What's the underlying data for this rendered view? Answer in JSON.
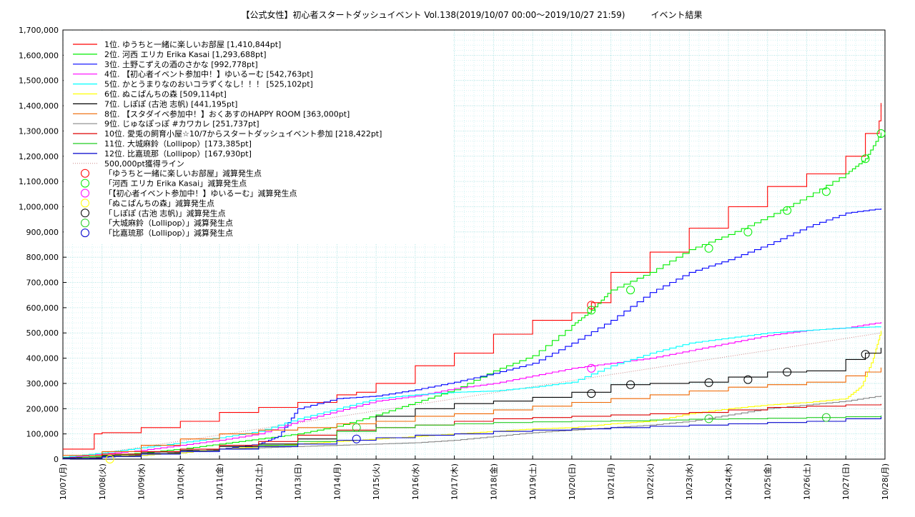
{
  "chart_data": {
    "type": "line",
    "title": "【公式女性】初心者スタートダッシュイベント Vol.138(2019/10/07 00:00〜2019/10/27 21:59)　　　イベント結果",
    "xlabel": "",
    "ylabel": "",
    "ylim": [
      0,
      1700000
    ],
    "grid": true,
    "legend_position": "top-left",
    "x_ticks": [
      "10/07(月)",
      "10/08(火)",
      "10/09(水)",
      "10/10(木)",
      "10/11(金)",
      "10/12(土)",
      "10/13(日)",
      "10/14(月)",
      "10/15(火)",
      "10/16(水)",
      "10/17(木)",
      "10/18(金)",
      "10/19(土)",
      "10/20(日)",
      "10/21(月)",
      "10/22(火)",
      "10/23(水)",
      "10/24(木)",
      "10/25(金)",
      "10/26(土)",
      "10/27(日)",
      "10/28(月)"
    ],
    "y_ticks": [
      "0",
      "100,000",
      "200,000",
      "300,000",
      "400,000",
      "500,000",
      "600,000",
      "700,000",
      "800,000",
      "900,000",
      "1,000,000",
      "1,100,000",
      "1,200,000",
      "1,300,000",
      "1,400,000",
      "1,500,000",
      "1,600,000",
      "1,700,000"
    ],
    "series": [
      {
        "name": "1位. ゆうちと一緒に楽しいお部屋 [1,410,844pt]",
        "color": "#ff0000",
        "style": "step",
        "x": [
          0,
          0.5,
          0.8,
          1,
          2,
          3,
          4,
          5,
          6,
          7,
          7.5,
          8,
          9,
          10,
          11,
          12,
          13,
          13.5,
          14,
          15,
          16,
          17,
          18,
          19,
          20,
          20.5,
          20.85,
          20.9
        ],
        "y": [
          40000,
          40000,
          100000,
          105000,
          125000,
          150000,
          185000,
          205000,
          225000,
          255000,
          265000,
          300000,
          370000,
          420000,
          495000,
          550000,
          580000,
          620000,
          740000,
          820000,
          915000,
          1000000,
          1080000,
          1130000,
          1200000,
          1290000,
          1340000,
          1410844
        ]
      },
      {
        "name": "2位. 河西 エリカ Erika Kasai [1,293,688pt]",
        "color": "#00ee00",
        "style": "line",
        "x": [
          0,
          1,
          2,
          3,
          4,
          5,
          6,
          7,
          8,
          9,
          10,
          11,
          12,
          13,
          13.5,
          14,
          15,
          16,
          17,
          18,
          19,
          20,
          20.5,
          20.9
        ],
        "y": [
          5000,
          12000,
          25000,
          40000,
          60000,
          80000,
          100000,
          130000,
          175000,
          225000,
          275000,
          350000,
          410000,
          530000,
          590000,
          670000,
          740000,
          830000,
          890000,
          960000,
          1040000,
          1130000,
          1190000,
          1293688
        ]
      },
      {
        "name": "3位. 土野こずえの酒のさかな [992,778pt]",
        "color": "#0000ff",
        "style": "line",
        "x": [
          0,
          1,
          2,
          3,
          4,
          5,
          5.5,
          6,
          7,
          8,
          9,
          10,
          11,
          12,
          13,
          14,
          15,
          16,
          17,
          18,
          19,
          20,
          20.9
        ],
        "y": [
          3000,
          8000,
          15000,
          25000,
          40000,
          60000,
          90000,
          200000,
          240000,
          250000,
          275000,
          305000,
          340000,
          380000,
          460000,
          550000,
          660000,
          740000,
          790000,
          850000,
          920000,
          975000,
          992778
        ]
      },
      {
        "name": "4位. 【初心者イベント参加中！】ゆいるーむ [542,763pt]",
        "color": "#ff00ff",
        "style": "line",
        "x": [
          0,
          1,
          2,
          3,
          4,
          5,
          6,
          7,
          8,
          9,
          10,
          11,
          12,
          13,
          14,
          15,
          16,
          17,
          18,
          19,
          20,
          20.9
        ],
        "y": [
          5000,
          20000,
          35000,
          55000,
          75000,
          100000,
          150000,
          190000,
          230000,
          250000,
          280000,
          300000,
          330000,
          360000,
          380000,
          400000,
          430000,
          460000,
          490000,
          510000,
          520000,
          542763
        ]
      },
      {
        "name": "5位. かとうまりなのおいコラずくなし！！！ [525,102pt]",
        "color": "#00ffff",
        "style": "line",
        "x": [
          0,
          1,
          2,
          3,
          4,
          5,
          6,
          7,
          8,
          9,
          10,
          11,
          12,
          13,
          14,
          15,
          16,
          17,
          18,
          19,
          20,
          20.9
        ],
        "y": [
          8000,
          25000,
          45000,
          65000,
          85000,
          110000,
          160000,
          200000,
          240000,
          255000,
          265000,
          270000,
          285000,
          305000,
          370000,
          420000,
          460000,
          480000,
          500000,
          510000,
          520000,
          525102
        ]
      },
      {
        "name": "6位. ぬこぱんちの森 [509,114pt]",
        "color": "#ffff00",
        "style": "line",
        "x": [
          0,
          1,
          2,
          3,
          4,
          5,
          6,
          7,
          8,
          9,
          10,
          11,
          12,
          13,
          14,
          15,
          16,
          17,
          18,
          19,
          20,
          20.4,
          20.7,
          20.9
        ],
        "y": [
          0,
          10000,
          15000,
          25000,
          40000,
          50000,
          60000,
          70000,
          80000,
          90000,
          100000,
          110000,
          120000,
          125000,
          140000,
          150000,
          180000,
          200000,
          215000,
          225000,
          240000,
          290000,
          400000,
          509114
        ]
      },
      {
        "name": "7位. しぽぽ (古池 志帆) [441,195pt]",
        "color": "#000000",
        "style": "step",
        "x": [
          0,
          1,
          2,
          3,
          4,
          5,
          6,
          7,
          8,
          9,
          10,
          11,
          12,
          13,
          14,
          15,
          16,
          17,
          18,
          19,
          20,
          20.5,
          20.9
        ],
        "y": [
          5000,
          15000,
          25000,
          35000,
          50000,
          60000,
          80000,
          110000,
          170000,
          200000,
          220000,
          230000,
          245000,
          265000,
          295000,
          300000,
          305000,
          325000,
          345000,
          350000,
          395000,
          420000,
          441195
        ]
      },
      {
        "name": "8位. 【スタダイベ参加中！】おくあすのHAPPY ROOM [363,000pt]",
        "color": "#ee6600",
        "style": "step",
        "x": [
          0,
          1,
          2,
          3,
          4,
          5,
          6,
          7,
          8,
          9,
          10,
          11,
          12,
          13,
          14,
          15,
          16,
          17,
          18,
          19,
          20,
          20.5,
          20.9
        ],
        "y": [
          15000,
          30000,
          55000,
          80000,
          100000,
          115000,
          125000,
          140000,
          150000,
          170000,
          180000,
          195000,
          210000,
          225000,
          240000,
          255000,
          270000,
          285000,
          295000,
          305000,
          330000,
          345000,
          363000
        ]
      },
      {
        "name": "9位. じゅなぽっぽ #カワカレ [251,737pt]",
        "color": "#888888",
        "style": "line",
        "x": [
          0,
          1,
          2,
          3,
          4,
          5,
          6,
          7,
          8,
          9,
          10,
          11,
          12,
          13,
          14,
          15,
          16,
          17,
          18,
          19,
          20,
          20.9
        ],
        "y": [
          0,
          10000,
          20000,
          30000,
          40000,
          45000,
          50000,
          55000,
          60000,
          65000,
          75000,
          90000,
          105000,
          115000,
          125000,
          135000,
          150000,
          175000,
          200000,
          215000,
          230000,
          251737
        ]
      },
      {
        "name": "10位. 愛兎の飼育小屋☆10/7からスタートダッシュイベント参加 [218,422pt]",
        "color": "#dd0000",
        "style": "step",
        "x": [
          0,
          1,
          2,
          3,
          4,
          5,
          6,
          7,
          8,
          9,
          10,
          11,
          12,
          13,
          14,
          15,
          16,
          17,
          18,
          19,
          20,
          20.9
        ],
        "y": [
          3000,
          20000,
          30000,
          40000,
          55000,
          70000,
          95000,
          115000,
          125000,
          135000,
          150000,
          160000,
          165000,
          170000,
          175000,
          180000,
          185000,
          195000,
          205000,
          210000,
          215000,
          218422
        ]
      },
      {
        "name": "11位. 大城麻鈴（Lollipop）[173,385pt]",
        "color": "#22cc22",
        "style": "step",
        "x": [
          0,
          1,
          2,
          3,
          4,
          5,
          6,
          7,
          8,
          9,
          10,
          11,
          12,
          13,
          14,
          15,
          16,
          17,
          18,
          19,
          20,
          20.9
        ],
        "y": [
          2000,
          10000,
          20000,
          30000,
          40000,
          55000,
          70000,
          110000,
          125000,
          135000,
          140000,
          145000,
          148000,
          150000,
          152000,
          155000,
          158000,
          160000,
          162000,
          165000,
          168000,
          173385
        ]
      },
      {
        "name": "12位. 比嘉琉那（Lollipop）[167,930pt]",
        "color": "#0000cc",
        "style": "step",
        "x": [
          0,
          1,
          2,
          3,
          4,
          5,
          6,
          7,
          8,
          9,
          10,
          11,
          12,
          13,
          14,
          15,
          16,
          17,
          18,
          19,
          20,
          20.9
        ],
        "y": [
          2000,
          10000,
          20000,
          30000,
          40000,
          50000,
          60000,
          75000,
          85000,
          95000,
          100000,
          110000,
          115000,
          120000,
          125000,
          130000,
          135000,
          140000,
          145000,
          150000,
          160000,
          167930
        ]
      }
    ],
    "reference_line": {
      "name": "500,000pt獲得ライン",
      "color": "#cc8888",
      "x": [
        0,
        20.9
      ],
      "y": [
        0,
        500000
      ]
    },
    "penalty_points": [
      {
        "name": "「ゆうちと一緒に楽しいお部屋」減算発生点",
        "color": "#ff0000",
        "x": [
          13.5
        ],
        "y": [
          610000
        ]
      },
      {
        "name": "「河西 エリカ Erika Kasai」減算発生点",
        "color": "#00ee00",
        "x": [
          13.5,
          14.5,
          16.5,
          17.5,
          18.5,
          19.5,
          20.5,
          20.9
        ],
        "y": [
          590000,
          670000,
          835000,
          900000,
          985000,
          1060000,
          1190000,
          1290000
        ]
      },
      {
        "name": "「【初心者イベント参加中！】ゆいるーむ」減算発生点",
        "color": "#ff00ff",
        "x": [
          13.5
        ],
        "y": [
          360000
        ]
      },
      {
        "name": "「ぬこぱんちの森」減算発生点",
        "color": "#ffff00",
        "x": [
          1.2
        ],
        "y": [
          0
        ]
      },
      {
        "name": "「しぽぽ (古池 志帆)」減算発生点",
        "color": "#000000",
        "x": [
          13.5,
          14.5,
          16.5,
          17.5,
          18.5,
          20.5
        ],
        "y": [
          260000,
          295000,
          303000,
          315000,
          345000,
          415000
        ]
      },
      {
        "name": "「大城麻鈴（Lollipop）」減算発生点",
        "color": "#22cc22",
        "x": [
          7.5,
          16.5,
          19.5
        ],
        "y": [
          125000,
          160000,
          165000
        ]
      },
      {
        "name": "「比嘉琉那（Lollipop）」減算発生点",
        "color": "#0000cc",
        "x": [
          7.5
        ],
        "y": [
          80000
        ]
      }
    ]
  }
}
